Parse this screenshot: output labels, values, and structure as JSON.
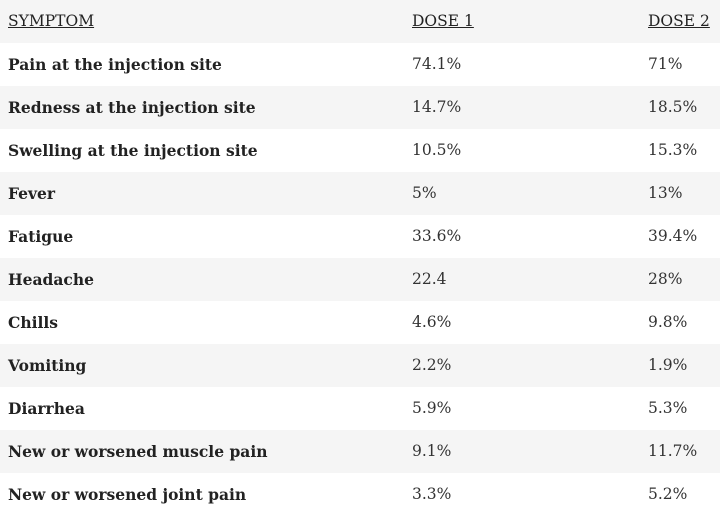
{
  "table": {
    "headers": [
      "SYMPTOM",
      "DOSE 1",
      "DOSE 2"
    ],
    "rows": [
      {
        "symptom": "Pain at the injection site",
        "dose1": "74.1%",
        "dose2": "71%"
      },
      {
        "symptom": "Redness at the injection site",
        "dose1": "14.7%",
        "dose2": "18.5%"
      },
      {
        "symptom": "Swelling at the injection site",
        "dose1": "10.5%",
        "dose2": "15.3%"
      },
      {
        "symptom": "Fever",
        "dose1": "5%",
        "dose2": "13%"
      },
      {
        "symptom": "Fatigue",
        "dose1": "33.6%",
        "dose2": "39.4%"
      },
      {
        "symptom": "Headache",
        "dose1": "22.4",
        "dose2": "28%"
      },
      {
        "symptom": "Chills",
        "dose1": "4.6%",
        "dose2": "9.8%"
      },
      {
        "symptom": "Vomiting",
        "dose1": "2.2%",
        "dose2": "1.9%"
      },
      {
        "symptom": "Diarrhea",
        "dose1": "5.9%",
        "dose2": "5.3%"
      },
      {
        "symptom": "New or worsened muscle pain",
        "dose1": "9.1%",
        "dose2": "11.7%"
      },
      {
        "symptom": "New or worsened joint pain",
        "dose1": "3.3%",
        "dose2": "5.2%"
      }
    ]
  },
  "colors": {
    "stripe": "#f5f5f5",
    "background": "#ffffff",
    "text": "#222222"
  }
}
